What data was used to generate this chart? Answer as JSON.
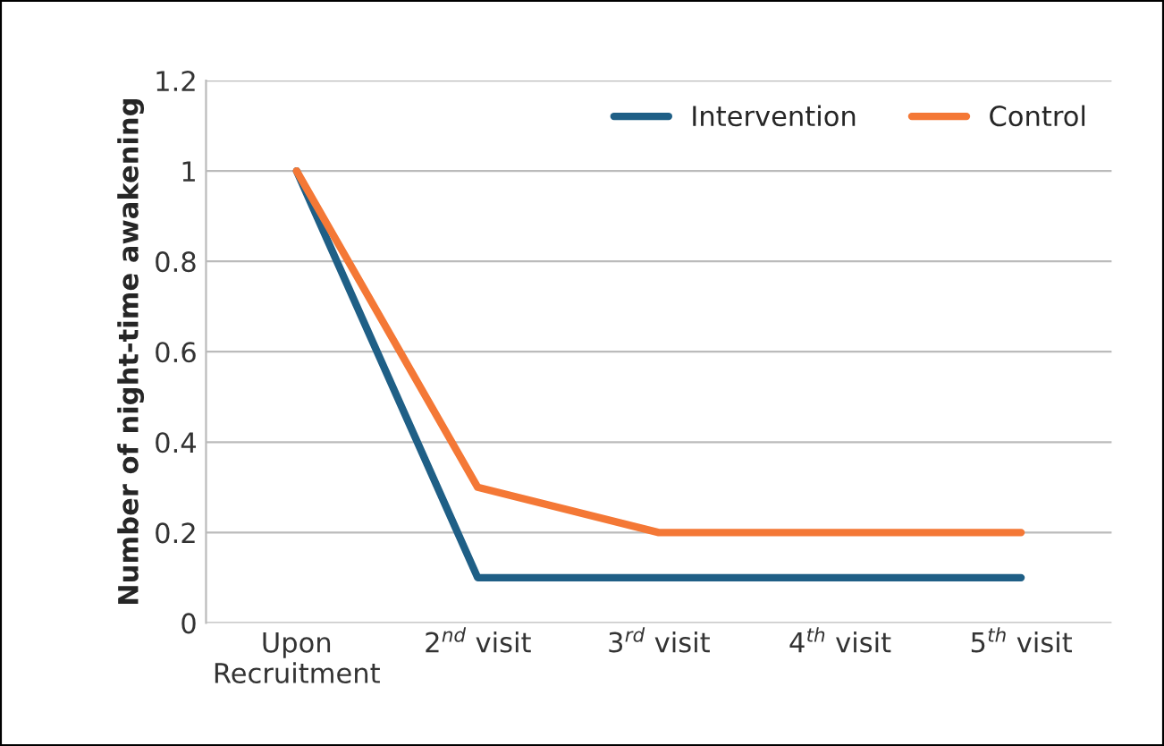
{
  "chart_data": {
    "type": "line",
    "ylabel": "Number of night-time awakening",
    "categories": [
      "Upon\nRecruitment",
      "2$^{nd}$ visit",
      "3$^{rd}$ visit",
      "4$^{th}$ visit",
      "5$^{th}$ visit"
    ],
    "series": [
      {
        "name": "Intervention",
        "color": "#1f5f86",
        "values": [
          1,
          0.1,
          0.1,
          0.1,
          0.1
        ]
      },
      {
        "name": "Control",
        "color": "#f47836",
        "values": [
          1,
          0.3,
          0.2,
          0.2,
          0.2
        ]
      }
    ],
    "ylim": [
      0,
      1.2
    ],
    "yticks": [
      0,
      {
        "value": 0.2,
        "label": "0.2"
      },
      {
        "value": 0.4,
        "label": "0.4"
      },
      {
        "value": 0.6,
        "label": "0.6"
      },
      {
        "value": 0.8,
        "label": "0.8"
      },
      1,
      {
        "value": 1.2,
        "label": "1.2"
      }
    ],
    "grid": "y",
    "legend": "top right",
    "marker": "none",
    "line_style": "solid"
  }
}
